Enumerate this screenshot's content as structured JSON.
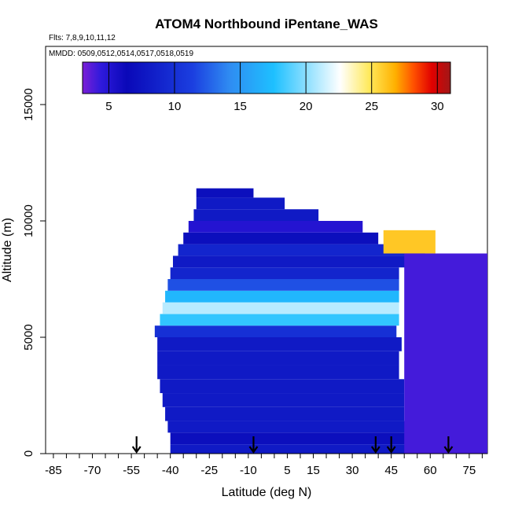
{
  "chart_data": {
    "type": "heatmap",
    "title": "ATOM4 Northbound iPentane_WAS",
    "flights_label": "Flts: 7,8,9,10,11,12",
    "dates_label": "MMDD: 0509,0512,0514,0517,0518,0519",
    "xlabel": "Latitude (deg N)",
    "ylabel": "Altitude (m)",
    "xlim": [
      -88,
      82
    ],
    "ylim": [
      0,
      17500
    ],
    "x_ticks": [
      -85,
      -70,
      -55,
      -40,
      -25,
      -10,
      5,
      15,
      30,
      45,
      60,
      75
    ],
    "x_minor_step": 5,
    "y_ticks": [
      0,
      5000,
      10000,
      15000
    ],
    "colorbar": {
      "range": [
        3.0,
        31.0
      ],
      "ticks": [
        5,
        10,
        15,
        20,
        25,
        30
      ],
      "colors": [
        "#7a1fd6",
        "#2f1adc",
        "#0a08b8",
        "#1b3fe0",
        "#2f8cf2",
        "#1ec0ff",
        "#ffffff",
        "#ffe95a",
        "#ffb000",
        "#ff5000",
        "#e00000",
        "#a01818"
      ],
      "stops": [
        0.0,
        0.05,
        0.12,
        0.3,
        0.4,
        0.52,
        0.7,
        0.78,
        0.85,
        0.9,
        0.95,
        1.0
      ]
    },
    "grid": false,
    "flight_markers_lat": [
      -53,
      -8,
      39,
      45,
      67
    ],
    "bands": [
      {
        "y0": 0,
        "y1": 400,
        "segments": [
          {
            "x0": -40,
            "x1": 58,
            "v": 8
          }
        ]
      },
      {
        "y0": 400,
        "y1": 900,
        "segments": [
          {
            "x0": -40,
            "x1": 55,
            "v": 7
          }
        ]
      },
      {
        "y0": 900,
        "y1": 1400,
        "segments": [
          {
            "x0": -41,
            "x1": 55,
            "v": 8
          }
        ]
      },
      {
        "y0": 1400,
        "y1": 2000,
        "segments": [
          {
            "x0": -42,
            "x1": 50,
            "v": 8
          }
        ]
      },
      {
        "y0": 2000,
        "y1": 2600,
        "segments": [
          {
            "x0": -43,
            "x1": 50,
            "v": 8
          }
        ]
      },
      {
        "y0": 2600,
        "y1": 3200,
        "segments": [
          {
            "x0": -44,
            "x1": 50,
            "v": 8
          }
        ]
      },
      {
        "y0": 3200,
        "y1": 3800,
        "segments": [
          {
            "x0": -45,
            "x1": 48,
            "v": 8
          }
        ]
      },
      {
        "y0": 3800,
        "y1": 4400,
        "segments": [
          {
            "x0": -45,
            "x1": 48,
            "v": 8
          }
        ]
      },
      {
        "y0": 4400,
        "y1": 5000,
        "segments": [
          {
            "x0": -45,
            "x1": 49,
            "v": 8
          }
        ]
      },
      {
        "y0": 5000,
        "y1": 5500,
        "segments": [
          {
            "x0": -46,
            "x1": 47,
            "v": 10
          }
        ]
      },
      {
        "y0": 5500,
        "y1": 6000,
        "segments": [
          {
            "x0": -44,
            "x1": 48,
            "v": 18
          }
        ]
      },
      {
        "y0": 6000,
        "y1": 6500,
        "segments": [
          {
            "x0": -43,
            "x1": 48,
            "v": 21
          }
        ]
      },
      {
        "y0": 6500,
        "y1": 7000,
        "segments": [
          {
            "x0": -42,
            "x1": 48,
            "v": 17
          }
        ]
      },
      {
        "y0": 7000,
        "y1": 7500,
        "segments": [
          {
            "x0": -41,
            "x1": 48,
            "v": 12
          }
        ]
      },
      {
        "y0": 7500,
        "y1": 8000,
        "segments": [
          {
            "x0": -40,
            "x1": 48,
            "v": 9
          }
        ]
      },
      {
        "y0": 8000,
        "y1": 8500,
        "segments": [
          {
            "x0": -39,
            "x1": 56,
            "v": 8
          }
        ]
      },
      {
        "y0": 8500,
        "y1": 9000,
        "segments": [
          {
            "x0": -37,
            "x1": 58,
            "v": 9
          }
        ]
      },
      {
        "y0": 9000,
        "y1": 9500,
        "segments": [
          {
            "x0": -35,
            "x1": 40,
            "v": 7
          }
        ]
      },
      {
        "y0": 9500,
        "y1": 10000,
        "segments": [
          {
            "x0": -33,
            "x1": 34,
            "v": 5
          }
        ]
      },
      {
        "y0": 10000,
        "y1": 10500,
        "segments": [
          {
            "x0": -31,
            "x1": 17,
            "v": 8
          }
        ]
      },
      {
        "y0": 10500,
        "y1": 11000,
        "segments": [
          {
            "x0": -30,
            "x1": 4,
            "v": 8
          }
        ]
      },
      {
        "y0": 11000,
        "y1": 11400,
        "segments": [
          {
            "x0": -30,
            "x1": -8,
            "v": 7
          }
        ]
      },
      {
        "y0": 8600,
        "y1": 9600,
        "segments": [
          {
            "x0": 42,
            "x1": 62,
            "v": 26
          }
        ]
      },
      {
        "y0": 0,
        "y1": 8600,
        "segments": [
          {
            "x0": 50,
            "x1": 82,
            "v": 4
          }
        ]
      }
    ]
  }
}
